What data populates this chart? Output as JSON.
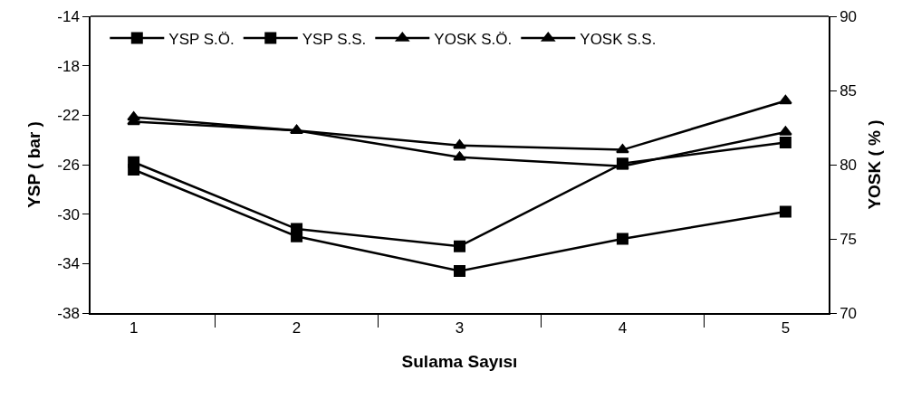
{
  "chart_data": {
    "type": "line",
    "xlabel": "Sulama Sayısı",
    "ylabel": "YSP ( bar )",
    "y2label": "YOSK ( % )",
    "categories": [
      "1",
      "2",
      "3",
      "4",
      "5"
    ],
    "ylim": [
      -38,
      -14
    ],
    "yticks": [
      -38,
      -34,
      -30,
      -26,
      -22,
      -18,
      -14
    ],
    "y2lim": [
      70,
      90
    ],
    "y2ticks": [
      70,
      75,
      80,
      85,
      90
    ],
    "grid": false,
    "legend": "top",
    "line_style": "solid",
    "series": [
      {
        "name": "YSP S.Ö.",
        "color": "#000000",
        "marker": "square",
        "values": [
          -26.4,
          -31.8,
          -34.6,
          -32.0,
          -29.8
        ]
      },
      {
        "name": "YSP S.S.",
        "color": "#000000",
        "marker": "square",
        "values": [
          -25.8,
          -31.2,
          -32.6,
          -25.9,
          -24.2
        ]
      },
      {
        "name": "YOSK S.Ö.",
        "color": "#000000",
        "marker": "triangle",
        "axis": "y2",
        "values": [
          82.9,
          82.3,
          80.5,
          79.9,
          82.2
        ]
      },
      {
        "name": "YOSK S.S.",
        "color": "#000000",
        "marker": "triangle",
        "axis": "y2",
        "values": [
          83.2,
          82.3,
          81.3,
          81.0,
          84.3
        ]
      }
    ]
  }
}
